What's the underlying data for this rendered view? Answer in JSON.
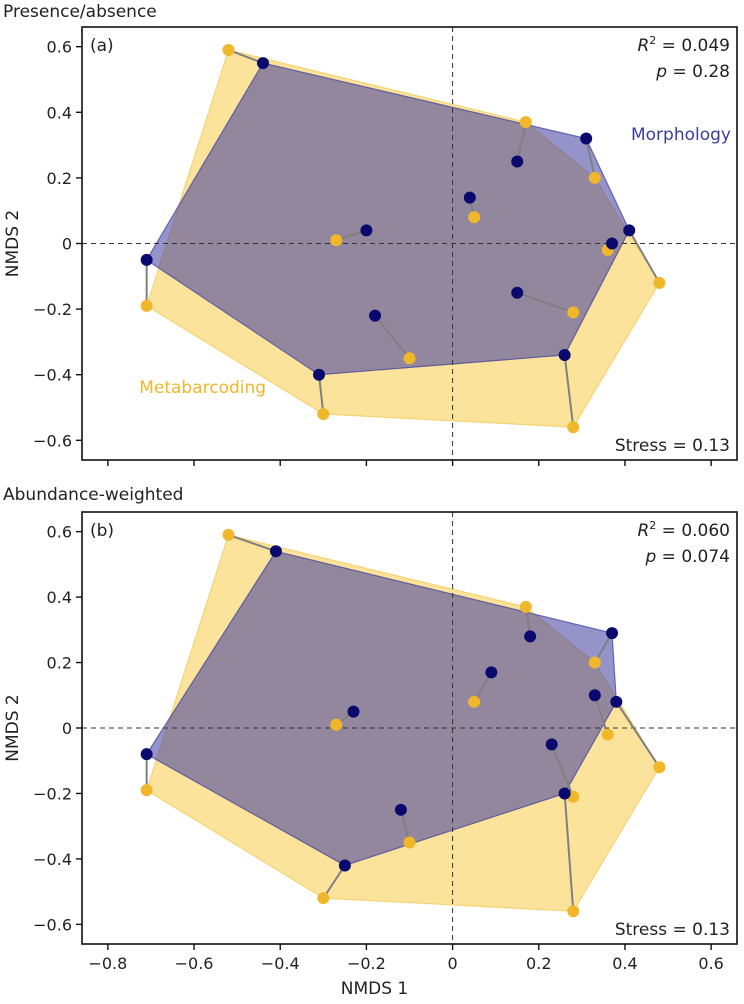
{
  "colors": {
    "morphology": "#0a0a6e",
    "metabarcoding": "#f0b72a",
    "morph_fill": "#3c3c9e",
    "meta_fill": "#fbd466",
    "connector": "#808080",
    "axis": "#111111"
  },
  "x_axis": {
    "label": "NMDS 1",
    "ticks": [
      "−0.8",
      "−0.6",
      "−0.4",
      "−0.2",
      "0",
      "0.2",
      "0.4",
      "0.6"
    ],
    "tick_values": [
      -0.8,
      -0.6,
      -0.4,
      -0.2,
      0,
      0.2,
      0.4,
      0.6
    ],
    "xlim": [
      -0.86,
      0.66
    ]
  },
  "chart_data": [
    {
      "type": "scatter",
      "panel_title": "Presence/absence",
      "panel_label": "(a)",
      "ylabel": "NMDS 2",
      "ylim": [
        -0.66,
        0.66
      ],
      "y_ticks": [
        "−0.6",
        "−0.4",
        "−0.2",
        "0",
        "0.2",
        "0.4",
        "0.6"
      ],
      "y_tick_values": [
        -0.6,
        -0.4,
        -0.2,
        0,
        0.2,
        0.4,
        0.6
      ],
      "stats": {
        "r2_label": "R",
        "r2_sup": "2",
        "r2_value": " = 0.049",
        "p_label": "p",
        "p_value": " = 0.28"
      },
      "stress": "Stress = 0.13",
      "series_labels": {
        "morphology": "Morphology",
        "metabarcoding": "Metabarcoding"
      },
      "pairs": [
        {
          "morph": [
            -0.44,
            0.55
          ],
          "meta": [
            -0.52,
            0.59
          ]
        },
        {
          "morph": [
            -0.71,
            -0.05
          ],
          "meta": [
            -0.71,
            -0.19
          ]
        },
        {
          "morph": [
            -0.31,
            -0.4
          ],
          "meta": [
            -0.3,
            -0.52
          ]
        },
        {
          "morph": [
            -0.2,
            0.04
          ],
          "meta": [
            -0.27,
            0.01
          ]
        },
        {
          "morph": [
            -0.18,
            -0.22
          ],
          "meta": [
            -0.1,
            -0.35
          ]
        },
        {
          "morph": [
            0.04,
            0.14
          ],
          "meta": [
            0.05,
            0.08
          ]
        },
        {
          "morph": [
            0.15,
            0.25
          ],
          "meta": [
            0.17,
            0.37
          ]
        },
        {
          "morph": [
            0.15,
            -0.15
          ],
          "meta": [
            0.28,
            -0.21
          ]
        },
        {
          "morph": [
            0.31,
            0.32
          ],
          "meta": [
            0.33,
            0.2
          ]
        },
        {
          "morph": [
            0.37,
            0.0
          ],
          "meta": [
            0.36,
            -0.02
          ]
        },
        {
          "morph": [
            0.41,
            0.04
          ],
          "meta": [
            0.48,
            -0.12
          ]
        },
        {
          "morph": [
            0.26,
            -0.34
          ],
          "meta": [
            0.28,
            -0.56
          ]
        }
      ]
    },
    {
      "type": "scatter",
      "panel_title": "Abundance-weighted",
      "panel_label": "(b)",
      "ylabel": "NMDS 2",
      "ylim": [
        -0.66,
        0.66
      ],
      "y_ticks": [
        "−0.6",
        "−0.4",
        "−0.2",
        "0",
        "0.2",
        "0.4",
        "0.6"
      ],
      "y_tick_values": [
        -0.6,
        -0.4,
        -0.2,
        0,
        0.2,
        0.4,
        0.6
      ],
      "stats": {
        "r2_label": "R",
        "r2_sup": "2",
        "r2_value": " = 0.060",
        "p_label": "p",
        "p_value": " = 0.074"
      },
      "stress": "Stress = 0.13",
      "series_labels": {
        "morphology": "",
        "metabarcoding": ""
      },
      "pairs": [
        {
          "morph": [
            -0.41,
            0.54
          ],
          "meta": [
            -0.52,
            0.59
          ]
        },
        {
          "morph": [
            -0.71,
            -0.08
          ],
          "meta": [
            -0.71,
            -0.19
          ]
        },
        {
          "morph": [
            -0.25,
            -0.42
          ],
          "meta": [
            -0.3,
            -0.52
          ]
        },
        {
          "morph": [
            -0.23,
            0.05
          ],
          "meta": [
            -0.27,
            0.01
          ]
        },
        {
          "morph": [
            -0.12,
            -0.25
          ],
          "meta": [
            -0.1,
            -0.35
          ]
        },
        {
          "morph": [
            0.09,
            0.17
          ],
          "meta": [
            0.05,
            0.08
          ]
        },
        {
          "morph": [
            0.18,
            0.28
          ],
          "meta": [
            0.17,
            0.37
          ]
        },
        {
          "morph": [
            0.23,
            -0.05
          ],
          "meta": [
            0.28,
            -0.21
          ]
        },
        {
          "morph": [
            0.37,
            0.29
          ],
          "meta": [
            0.33,
            0.2
          ]
        },
        {
          "morph": [
            0.33,
            0.1
          ],
          "meta": [
            0.36,
            -0.02
          ]
        },
        {
          "morph": [
            0.38,
            0.08
          ],
          "meta": [
            0.48,
            -0.12
          ]
        },
        {
          "morph": [
            0.26,
            -0.2
          ],
          "meta": [
            0.28,
            -0.56
          ]
        }
      ]
    }
  ]
}
